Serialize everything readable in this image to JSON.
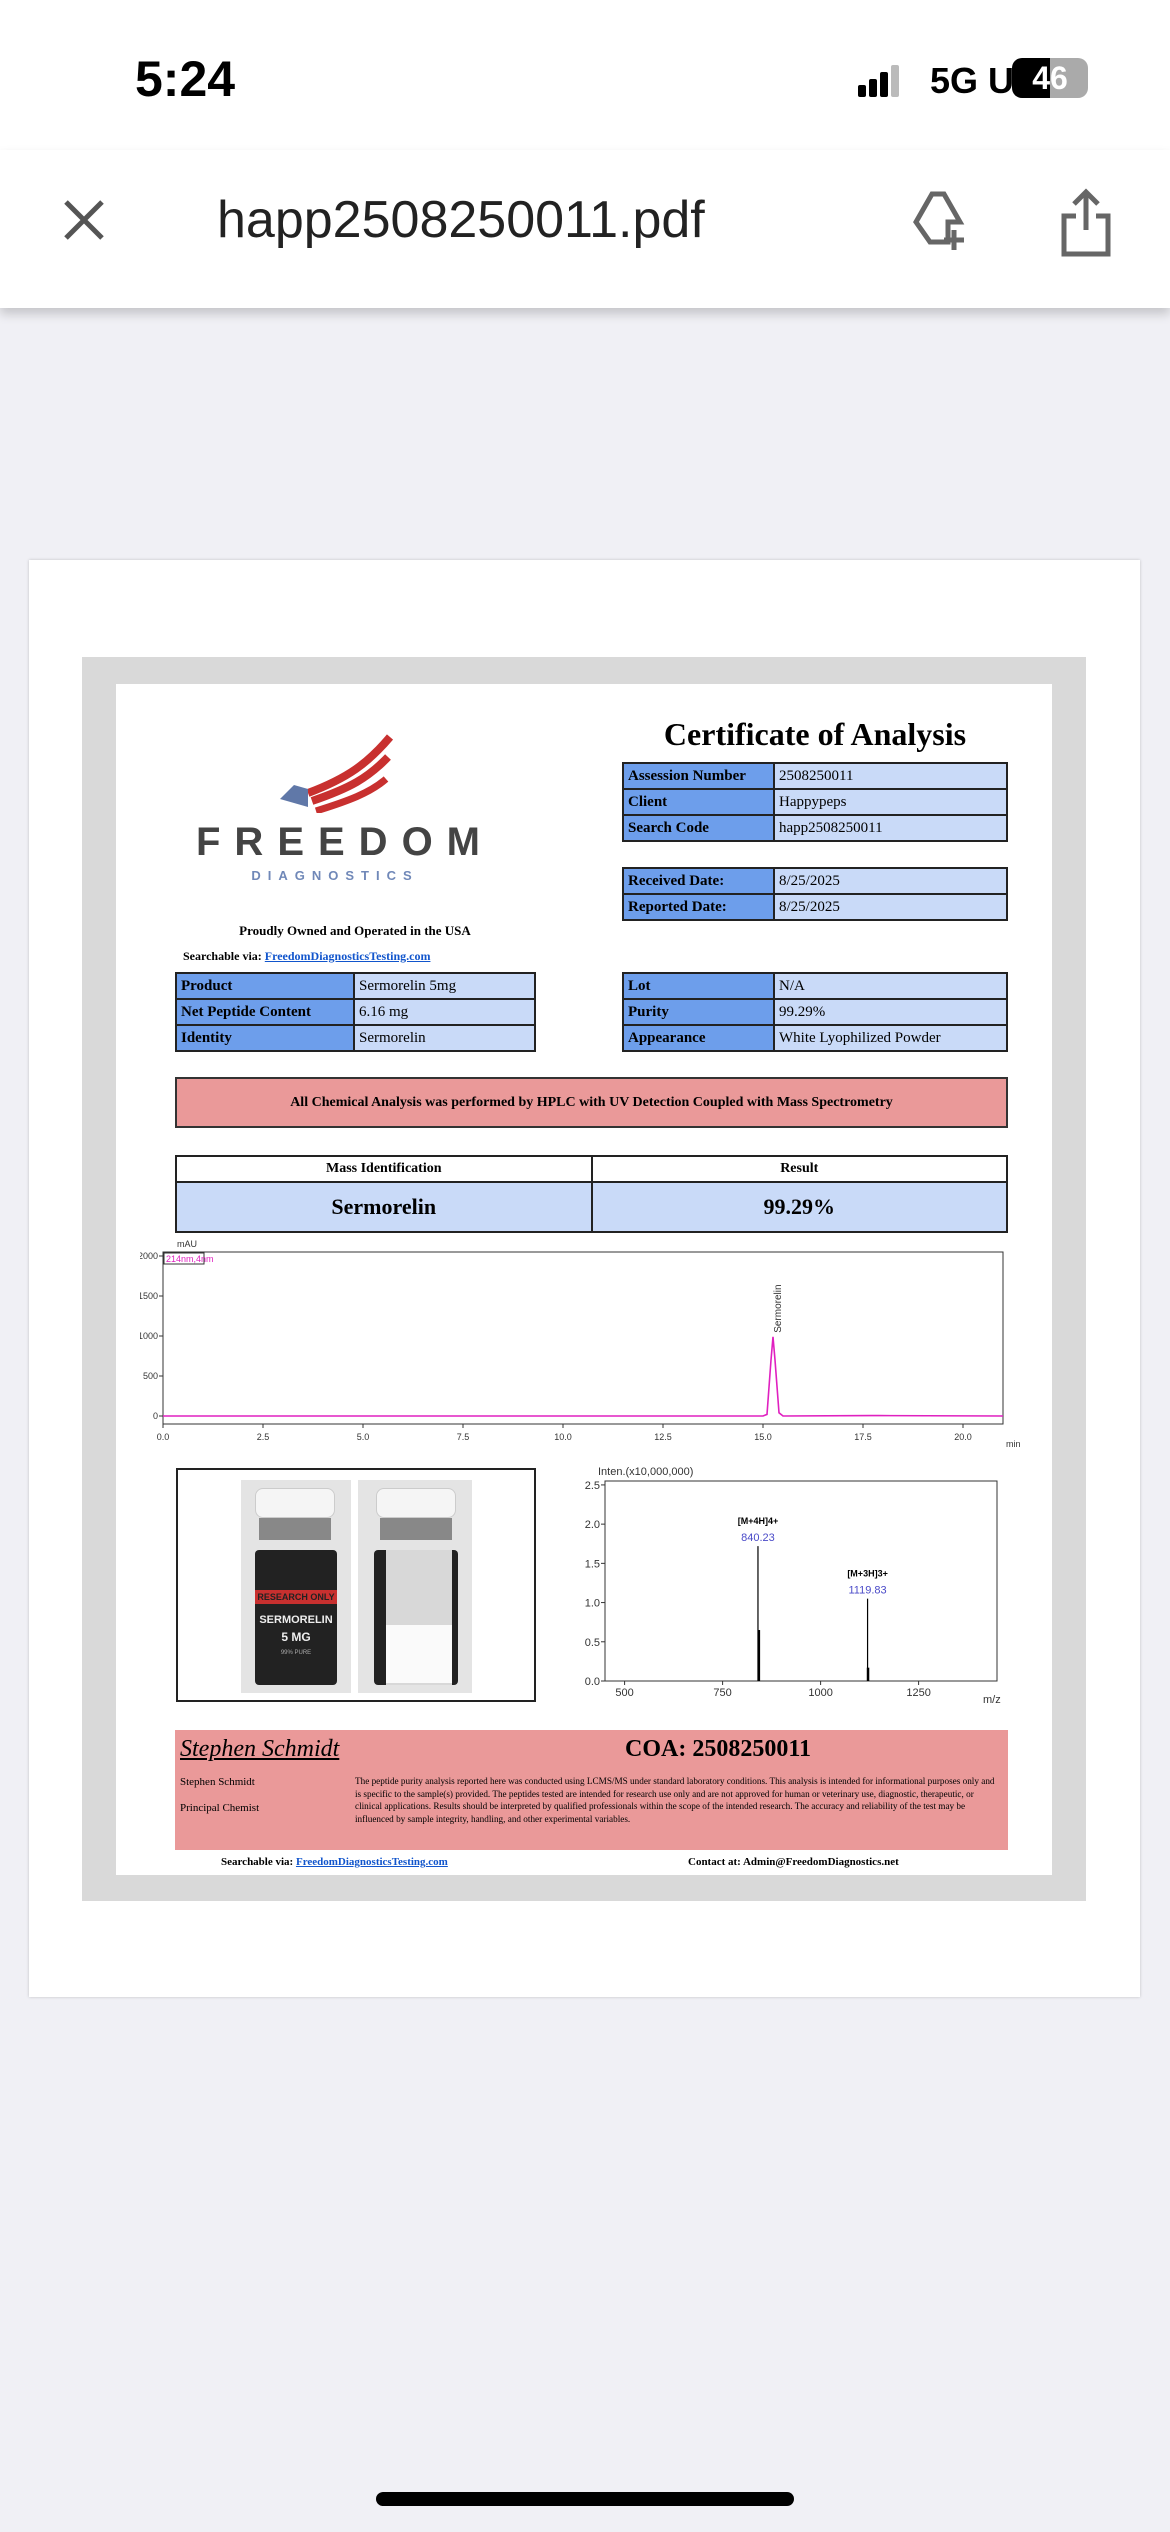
{
  "status_bar": {
    "time": "5:24",
    "network": "5G UC",
    "battery": "46"
  },
  "top_bar": {
    "title": "happ2508250011.pdf",
    "icons": [
      "close-icon",
      "drive-add-icon",
      "share-icon"
    ]
  },
  "document": {
    "title": "Certificate of Analysis",
    "logo": {
      "name": "FREEDOM",
      "sub": "DIAGNOSTICS"
    },
    "tagline": "Proudly Owned and Operated in the USA",
    "searchable_label": "Searchable via:",
    "searchable_link": "FreedomDiagnosticsTesting.com",
    "id_table": [
      {
        "label": "Assession Number",
        "value": "2508250011"
      },
      {
        "label": "Client",
        "value": "Happypeps"
      },
      {
        "label": "Search Code",
        "value": "happ2508250011"
      }
    ],
    "date_table": [
      {
        "label": "Received Date:",
        "value": "8/25/2025"
      },
      {
        "label": "Reported Date:",
        "value": "8/25/2025"
      }
    ],
    "product_table": [
      {
        "label": "Product",
        "value": "Sermorelin 5mg"
      },
      {
        "label": "Net Peptide Content",
        "value": "6.16 mg"
      },
      {
        "label": "Identity",
        "value": "Sermorelin"
      }
    ],
    "lot_table": [
      {
        "label": "Lot",
        "value": "N/A"
      },
      {
        "label": "Purity",
        "value": "99.29%"
      },
      {
        "label": "Appearance",
        "value": "White Lyophilized Powder"
      }
    ],
    "banner": "All Chemical Analysis was performed by HPLC with UV Detection Coupled with Mass Spectrometry",
    "result_table": {
      "headers": [
        "Mass Identification",
        "Result"
      ],
      "row": [
        "Sermorelin",
        "99.29%"
      ]
    },
    "vial_labels": {
      "band": "RESEARCH ONLY",
      "name": "SERMORELIN",
      "dose": "5 MG",
      "purity": "99% PURE"
    },
    "footer": {
      "signature": "Stephen Schmidt",
      "coa": "COA: 2508250011",
      "name": "Stephen Schmidt",
      "role": "Principal Chemist",
      "disclaimer": "The peptide purity analysis reported here was conducted using LCMS/MS under standard laboratory conditions. This analysis is intended for informational purposes only and is specific to the sample(s) provided. The peptides tested are intended for research use only and are not approved for human or veterinary use, diagnostic, therapeutic, or clinical applications. Results should be interpreted by qualified professionals within the scope of the intended research. The accuracy and reliability of the test may be influenced by sample integrity, handling, and other experimental variables.",
      "searchable_label": "Searchable via:",
      "searchable_link": "FreedomDiagnosticsTesting.com",
      "contact": "Contact at: Admin@FreedomDiagnostics.net"
    }
  },
  "colors": {
    "label_blue": "#6d9eeb",
    "value_blue": "#c9daf8",
    "banner_red": "#ea9999",
    "trace": "#e020c0"
  },
  "chart_data": [
    {
      "type": "line",
      "ylabel": "mAU",
      "xlabel": "min",
      "legend": "214nm,4nm",
      "peak_label": "Sermorelin",
      "xlim": [
        0,
        21
      ],
      "ylim": [
        -100,
        2050
      ],
      "xticks": [
        0,
        2.5,
        5,
        7.5,
        10,
        12.5,
        15,
        17.5,
        20
      ],
      "xtick_labels": [
        "0.0",
        "2.5",
        "5.0",
        "7.5",
        "10.0",
        "12.5",
        "15.0",
        "17.5",
        "20.0"
      ],
      "yticks": [
        0,
        500,
        1000,
        1500,
        2000
      ],
      "x": [
        0,
        1,
        15.0,
        15.1,
        15.2,
        15.25,
        15.3,
        15.4,
        15.5,
        17.7,
        17.9,
        21
      ],
      "y": [
        0,
        0,
        0,
        20,
        700,
        990,
        700,
        40,
        0,
        5,
        5,
        0
      ]
    },
    {
      "type": "bar",
      "ylabel": "Inten.(x10,000,000)",
      "xlabel": "m/z",
      "xlim": [
        450,
        1450
      ],
      "ylim": [
        0,
        2.55
      ],
      "xticks": [
        500,
        750,
        1000,
        1250
      ],
      "yticks": [
        0.0,
        0.5,
        1.0,
        1.5,
        2.0,
        2.5
      ],
      "ytick_labels": [
        "0.0",
        "0.5",
        "1.0",
        "1.5",
        "2.0",
        "2.5"
      ],
      "peaks": [
        {
          "x": 840.23,
          "y": 1.72,
          "label": "[M+4H]4+",
          "value": "840.23"
        },
        {
          "x": 842.5,
          "y": 0.65
        },
        {
          "x": 1119.83,
          "y": 1.05,
          "label": "[M+3H]3+",
          "value": "1119.83"
        },
        {
          "x": 1121,
          "y": 0.17
        }
      ]
    }
  ]
}
